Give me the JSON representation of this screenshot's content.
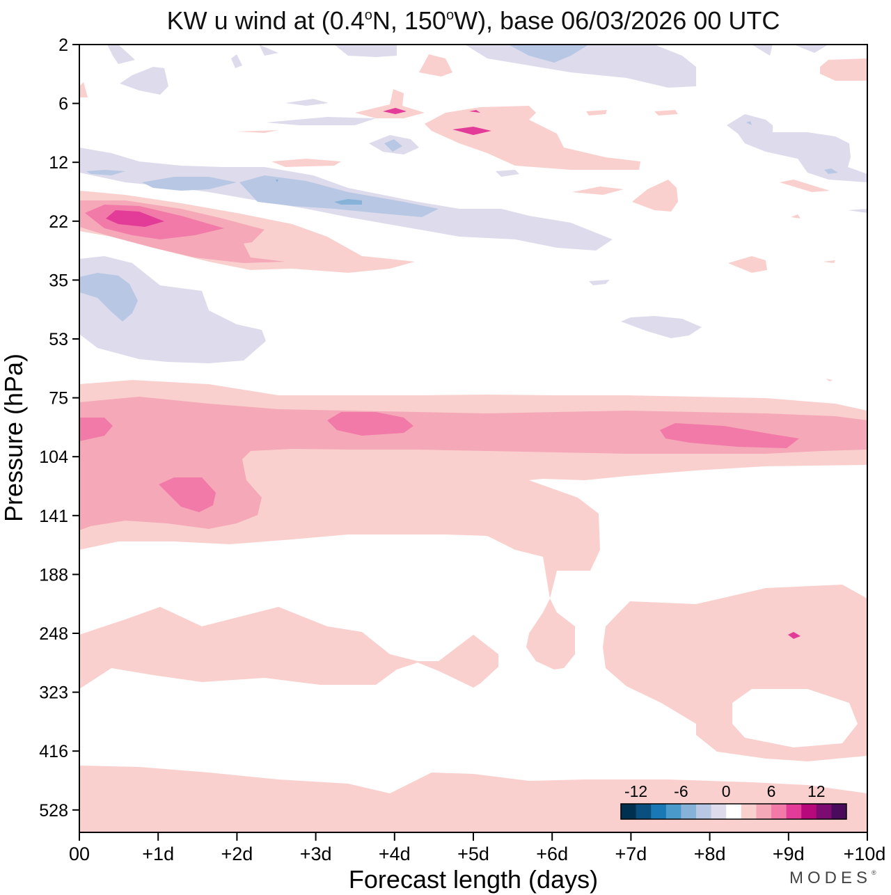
{
  "chart_data": {
    "type": "heatmap",
    "title_parts": {
      "prefix": "KW u wind at (0.4",
      "deg1": "o",
      "mid": "N, 150",
      "deg2": "o",
      "suffix": "W),  base 06/03/2026  00 UTC"
    },
    "xlabel": "Forecast length (days)",
    "ylabel": "Pressure (hPa)",
    "x_ticks": [
      "00",
      "+1d",
      "+2d",
      "+3d",
      "+4d",
      "+5d",
      "+6d",
      "+7d",
      "+8d",
      "+9d",
      "+10d"
    ],
    "xlim": [
      0,
      10
    ],
    "y_ticks": [
      "2",
      "6",
      "12",
      "22",
      "35",
      "53",
      "75",
      "104",
      "141",
      "188",
      "248",
      "323",
      "416",
      "528"
    ],
    "y_scale": "log-like, top = 2 hPa, bottom ≈ 660 hPa",
    "grid": false,
    "legend": {
      "position": "bottom-right",
      "tick_labels": [
        "-12",
        "-6",
        "0",
        "6",
        "12"
      ],
      "level_step": 2,
      "colors": [
        "#003050",
        "#0b4f7f",
        "#1a78b4",
        "#4a9acb",
        "#86b2d8",
        "#b8c8e4",
        "#dedcec",
        "#ffffff",
        "#fad0ce",
        "#f5a8b8",
        "#f27aa8",
        "#e23c98",
        "#b8097c",
        "#7c0c72",
        "#4a0b5c"
      ]
    },
    "features": [
      {
        "name": "Easterly anomaly 10-20 hPa",
        "value_range": [
          -6,
          -2
        ],
        "days": [
          0,
          6.7
        ]
      },
      {
        "name": "Westerly anomaly ~22 hPa",
        "value_range": [
          2,
          8
        ],
        "days": [
          0,
          4.2
        ]
      },
      {
        "name": "Easterly anomaly 35-53 hPa",
        "value_range": [
          -4,
          -2
        ],
        "days": [
          0,
          2.4
        ]
      },
      {
        "name": "Westerly band 75-140 hPa",
        "value_range": [
          2,
          6
        ],
        "days": [
          0,
          10
        ]
      },
      {
        "name": "Westerly band 230-320 hPa",
        "value_range": [
          0,
          2
        ],
        "days": [
          0,
          10
        ]
      },
      {
        "name": "Westerly band 470-600 hPa",
        "value_range": [
          0,
          2
        ],
        "days": [
          0,
          10
        ]
      }
    ]
  },
  "branding": {
    "logo": "MODES",
    "mark": "®"
  },
  "colors": {
    "axis": "#000000",
    "background": "#ffffff"
  }
}
